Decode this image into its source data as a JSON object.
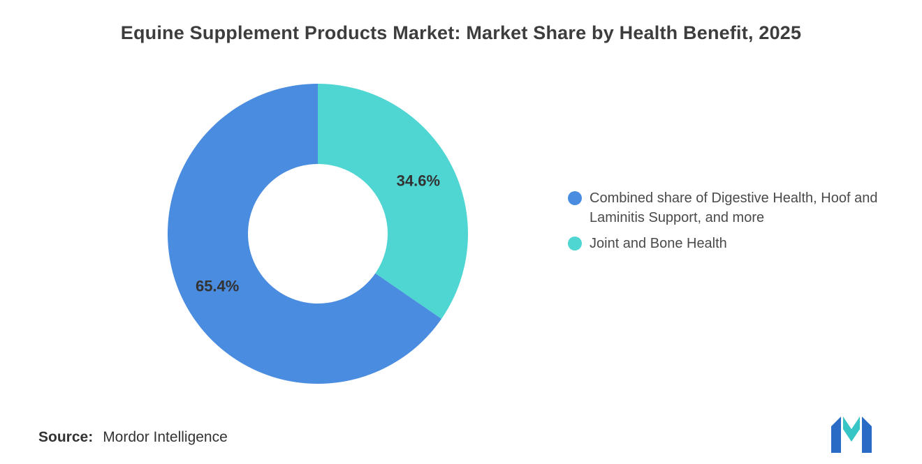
{
  "title": "Equine Supplement Products Market: Market Share by Health Benefit, 2025",
  "chart_data": {
    "type": "pie",
    "donut": true,
    "title": "Equine Supplement Products Market: Market Share by Health Benefit, 2025",
    "legend_position": "right",
    "start_angle_deg": -90,
    "direction": "clockwise-from-top",
    "series": [
      {
        "name": "Combined share of Digestive Health, Hoof and Laminitis Support, and more",
        "value": 65.4,
        "label": "65.4%",
        "color": "#4a8ce0"
      },
      {
        "name": "Joint and Bone Health",
        "value": 34.6,
        "label": "34.6%",
        "color": "#4fd5d2"
      }
    ]
  },
  "source": {
    "label": "Source:",
    "value": "Mordor Intelligence"
  },
  "logo": {
    "name": "mordor-intelligence-logo",
    "blue": "#2a6bc6",
    "teal": "#37c5c5"
  }
}
